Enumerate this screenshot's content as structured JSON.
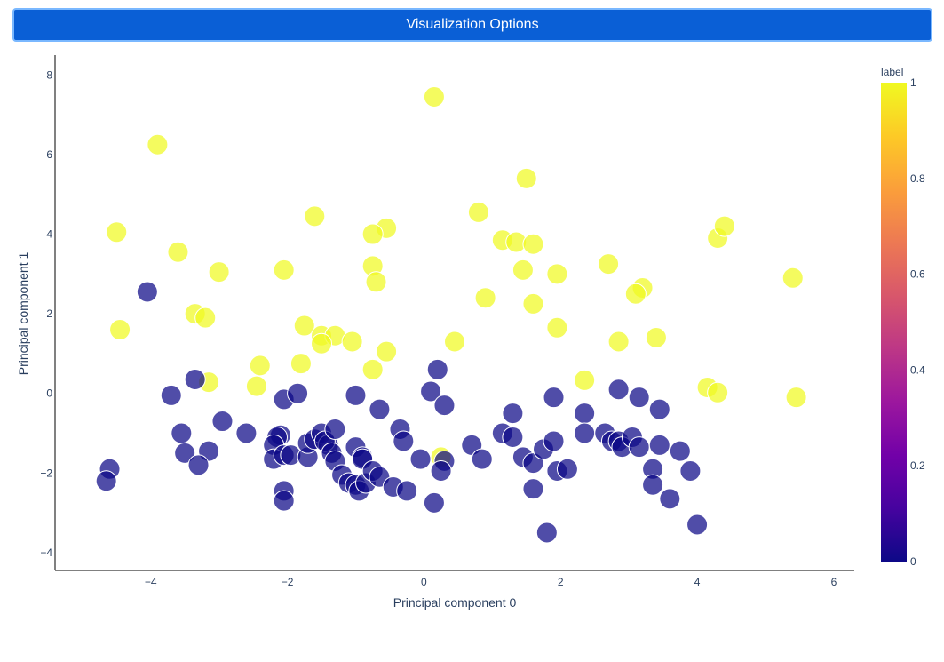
{
  "header": {
    "button_label": "Visualization Options"
  },
  "chart_data": {
    "type": "scatter",
    "xlabel": "Principal component 0",
    "ylabel": "Principal component 1",
    "xlim": [
      -5.4,
      6.3
    ],
    "ylim": [
      -4.45,
      8.5
    ],
    "xticks": [
      -4,
      -2,
      0,
      2,
      4,
      6
    ],
    "yticks": [
      -4,
      -2,
      0,
      2,
      4,
      6,
      8
    ],
    "colorbar": {
      "title": "label",
      "ticks": [
        0,
        0.2,
        0.4,
        0.6,
        0.8,
        1
      ],
      "colorscale": [
        "#0d0887",
        "#46039f",
        "#7201a8",
        "#9c179e",
        "#bd3786",
        "#d8576b",
        "#ed7953",
        "#fb9f3a",
        "#fdca26",
        "#f0f921"
      ]
    },
    "grid": false,
    "series": [
      {
        "label_value": 1,
        "color": "#f0f921",
        "points": [
          [
            0.15,
            7.45
          ],
          [
            -3.9,
            6.25
          ],
          [
            1.5,
            5.4
          ],
          [
            -4.5,
            4.05
          ],
          [
            -1.6,
            4.45
          ],
          [
            -0.55,
            4.15
          ],
          [
            0.8,
            4.55
          ],
          [
            -0.75,
            4.0
          ],
          [
            1.15,
            3.85
          ],
          [
            1.35,
            3.8
          ],
          [
            1.6,
            3.75
          ],
          [
            4.3,
            3.9
          ],
          [
            4.4,
            4.2
          ],
          [
            -3.6,
            3.55
          ],
          [
            -3.0,
            3.05
          ],
          [
            -2.05,
            3.1
          ],
          [
            -0.75,
            3.2
          ],
          [
            -0.7,
            2.8
          ],
          [
            1.45,
            3.1
          ],
          [
            1.95,
            3.0
          ],
          [
            2.7,
            3.25
          ],
          [
            5.4,
            2.9
          ],
          [
            3.2,
            2.65
          ],
          [
            3.1,
            2.5
          ],
          [
            0.9,
            2.4
          ],
          [
            1.6,
            2.25
          ],
          [
            -3.35,
            2.0
          ],
          [
            -3.2,
            1.9
          ],
          [
            -4.45,
            1.6
          ],
          [
            -1.75,
            1.7
          ],
          [
            -1.5,
            1.45
          ],
          [
            -1.3,
            1.45
          ],
          [
            -1.5,
            1.25
          ],
          [
            -1.05,
            1.3
          ],
          [
            0.45,
            1.3
          ],
          [
            1.95,
            1.65
          ],
          [
            2.85,
            1.3
          ],
          [
            3.4,
            1.4
          ],
          [
            -0.55,
            1.05
          ],
          [
            -2.4,
            0.7
          ],
          [
            -1.8,
            0.75
          ],
          [
            -0.75,
            0.6
          ],
          [
            -3.15,
            0.28
          ],
          [
            -2.45,
            0.18
          ],
          [
            2.35,
            0.33
          ],
          [
            4.15,
            0.15
          ],
          [
            4.3,
            0.02
          ],
          [
            5.45,
            -0.1
          ],
          [
            0.25,
            -1.6
          ]
        ]
      },
      {
        "label_value": 0,
        "color": "#0d0887",
        "points": [
          [
            -4.05,
            2.55
          ],
          [
            -3.35,
            0.35
          ],
          [
            -3.7,
            -0.05
          ],
          [
            -2.95,
            -0.7
          ],
          [
            -3.55,
            -1.0
          ],
          [
            -3.5,
            -1.5
          ],
          [
            -3.15,
            -1.45
          ],
          [
            -3.3,
            -1.8
          ],
          [
            -4.6,
            -1.9
          ],
          [
            -4.65,
            -2.2
          ],
          [
            -2.6,
            -1.0
          ],
          [
            -2.05,
            -0.15
          ],
          [
            -1.85,
            0.0
          ],
          [
            -2.1,
            -1.05
          ],
          [
            -2.15,
            -1.1
          ],
          [
            -2.2,
            -1.3
          ],
          [
            -2.2,
            -1.65
          ],
          [
            -2.05,
            -1.55
          ],
          [
            -1.95,
            -1.55
          ],
          [
            -1.7,
            -1.6
          ],
          [
            -1.7,
            -1.25
          ],
          [
            -1.6,
            -1.15
          ],
          [
            -1.5,
            -1.0
          ],
          [
            -1.4,
            -1.3
          ],
          [
            -1.45,
            -1.2
          ],
          [
            -1.3,
            -0.9
          ],
          [
            -1.35,
            -1.5
          ],
          [
            -1.3,
            -1.7
          ],
          [
            -1.2,
            -2.05
          ],
          [
            -1.1,
            -2.25
          ],
          [
            -1.0,
            -2.3
          ],
          [
            -0.95,
            -2.45
          ],
          [
            -0.85,
            -2.25
          ],
          [
            -1.0,
            -1.35
          ],
          [
            -0.9,
            -1.6
          ],
          [
            -0.9,
            -1.65
          ],
          [
            -0.75,
            -1.95
          ],
          [
            -0.65,
            -2.1
          ],
          [
            -0.45,
            -2.35
          ],
          [
            -0.25,
            -2.45
          ],
          [
            -2.05,
            -2.45
          ],
          [
            -2.05,
            -2.7
          ],
          [
            -1.0,
            -0.05
          ],
          [
            -0.65,
            -0.4
          ],
          [
            -0.35,
            -0.9
          ],
          [
            -0.3,
            -1.2
          ],
          [
            0.2,
            0.6
          ],
          [
            0.1,
            0.05
          ],
          [
            0.3,
            -0.3
          ],
          [
            -0.05,
            -1.65
          ],
          [
            0.3,
            -1.7
          ],
          [
            0.25,
            -1.95
          ],
          [
            0.15,
            -2.75
          ],
          [
            0.7,
            -1.3
          ],
          [
            0.85,
            -1.65
          ],
          [
            1.15,
            -1.0
          ],
          [
            1.3,
            -0.5
          ],
          [
            1.3,
            -1.1
          ],
          [
            1.45,
            -1.6
          ],
          [
            1.6,
            -1.75
          ],
          [
            1.75,
            -1.4
          ],
          [
            1.9,
            -1.2
          ],
          [
            1.95,
            -1.95
          ],
          [
            2.1,
            -1.9
          ],
          [
            1.6,
            -2.4
          ],
          [
            1.8,
            -3.5
          ],
          [
            1.9,
            -0.1
          ],
          [
            2.35,
            -0.5
          ],
          [
            2.35,
            -1.0
          ],
          [
            2.65,
            -1.0
          ],
          [
            2.75,
            -1.2
          ],
          [
            2.85,
            -1.2
          ],
          [
            2.9,
            -1.35
          ],
          [
            3.05,
            -1.1
          ],
          [
            3.15,
            -1.35
          ],
          [
            2.85,
            0.1
          ],
          [
            3.15,
            -0.1
          ],
          [
            3.45,
            -0.4
          ],
          [
            3.45,
            -1.3
          ],
          [
            3.75,
            -1.45
          ],
          [
            3.35,
            -1.9
          ],
          [
            3.35,
            -2.3
          ],
          [
            3.6,
            -2.65
          ],
          [
            3.9,
            -1.95
          ],
          [
            4.0,
            -3.3
          ]
        ]
      }
    ]
  }
}
